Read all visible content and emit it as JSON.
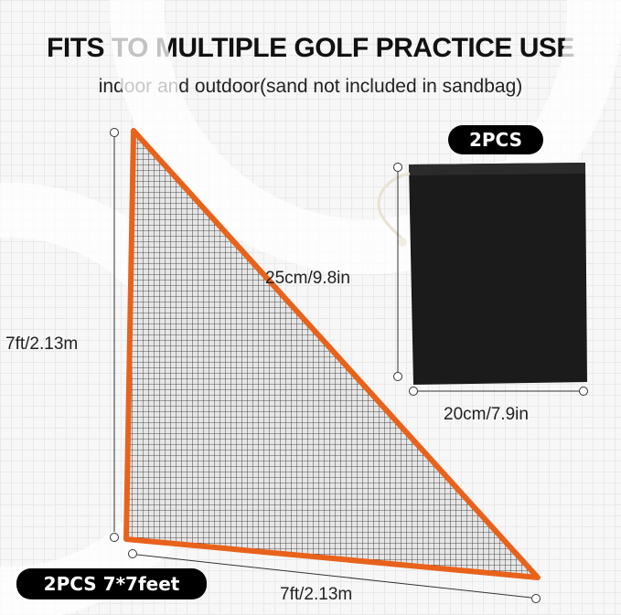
{
  "header": {
    "title": "FITS TO MULTIPLE GOLF PRACTICE USE",
    "subtitle": "indoor and outdoor(sand not included in sandbag)"
  },
  "bag": {
    "badge": "2PCS",
    "height_label": "25cm/9.8in",
    "width_label": "20cm/7.9in",
    "color": "#1b1b1b"
  },
  "net": {
    "badge": "2PCS 7*7feet",
    "height_label": "7ft/2.13m",
    "width_label": "7ft/2.13m",
    "border_color": "#e8621c"
  }
}
